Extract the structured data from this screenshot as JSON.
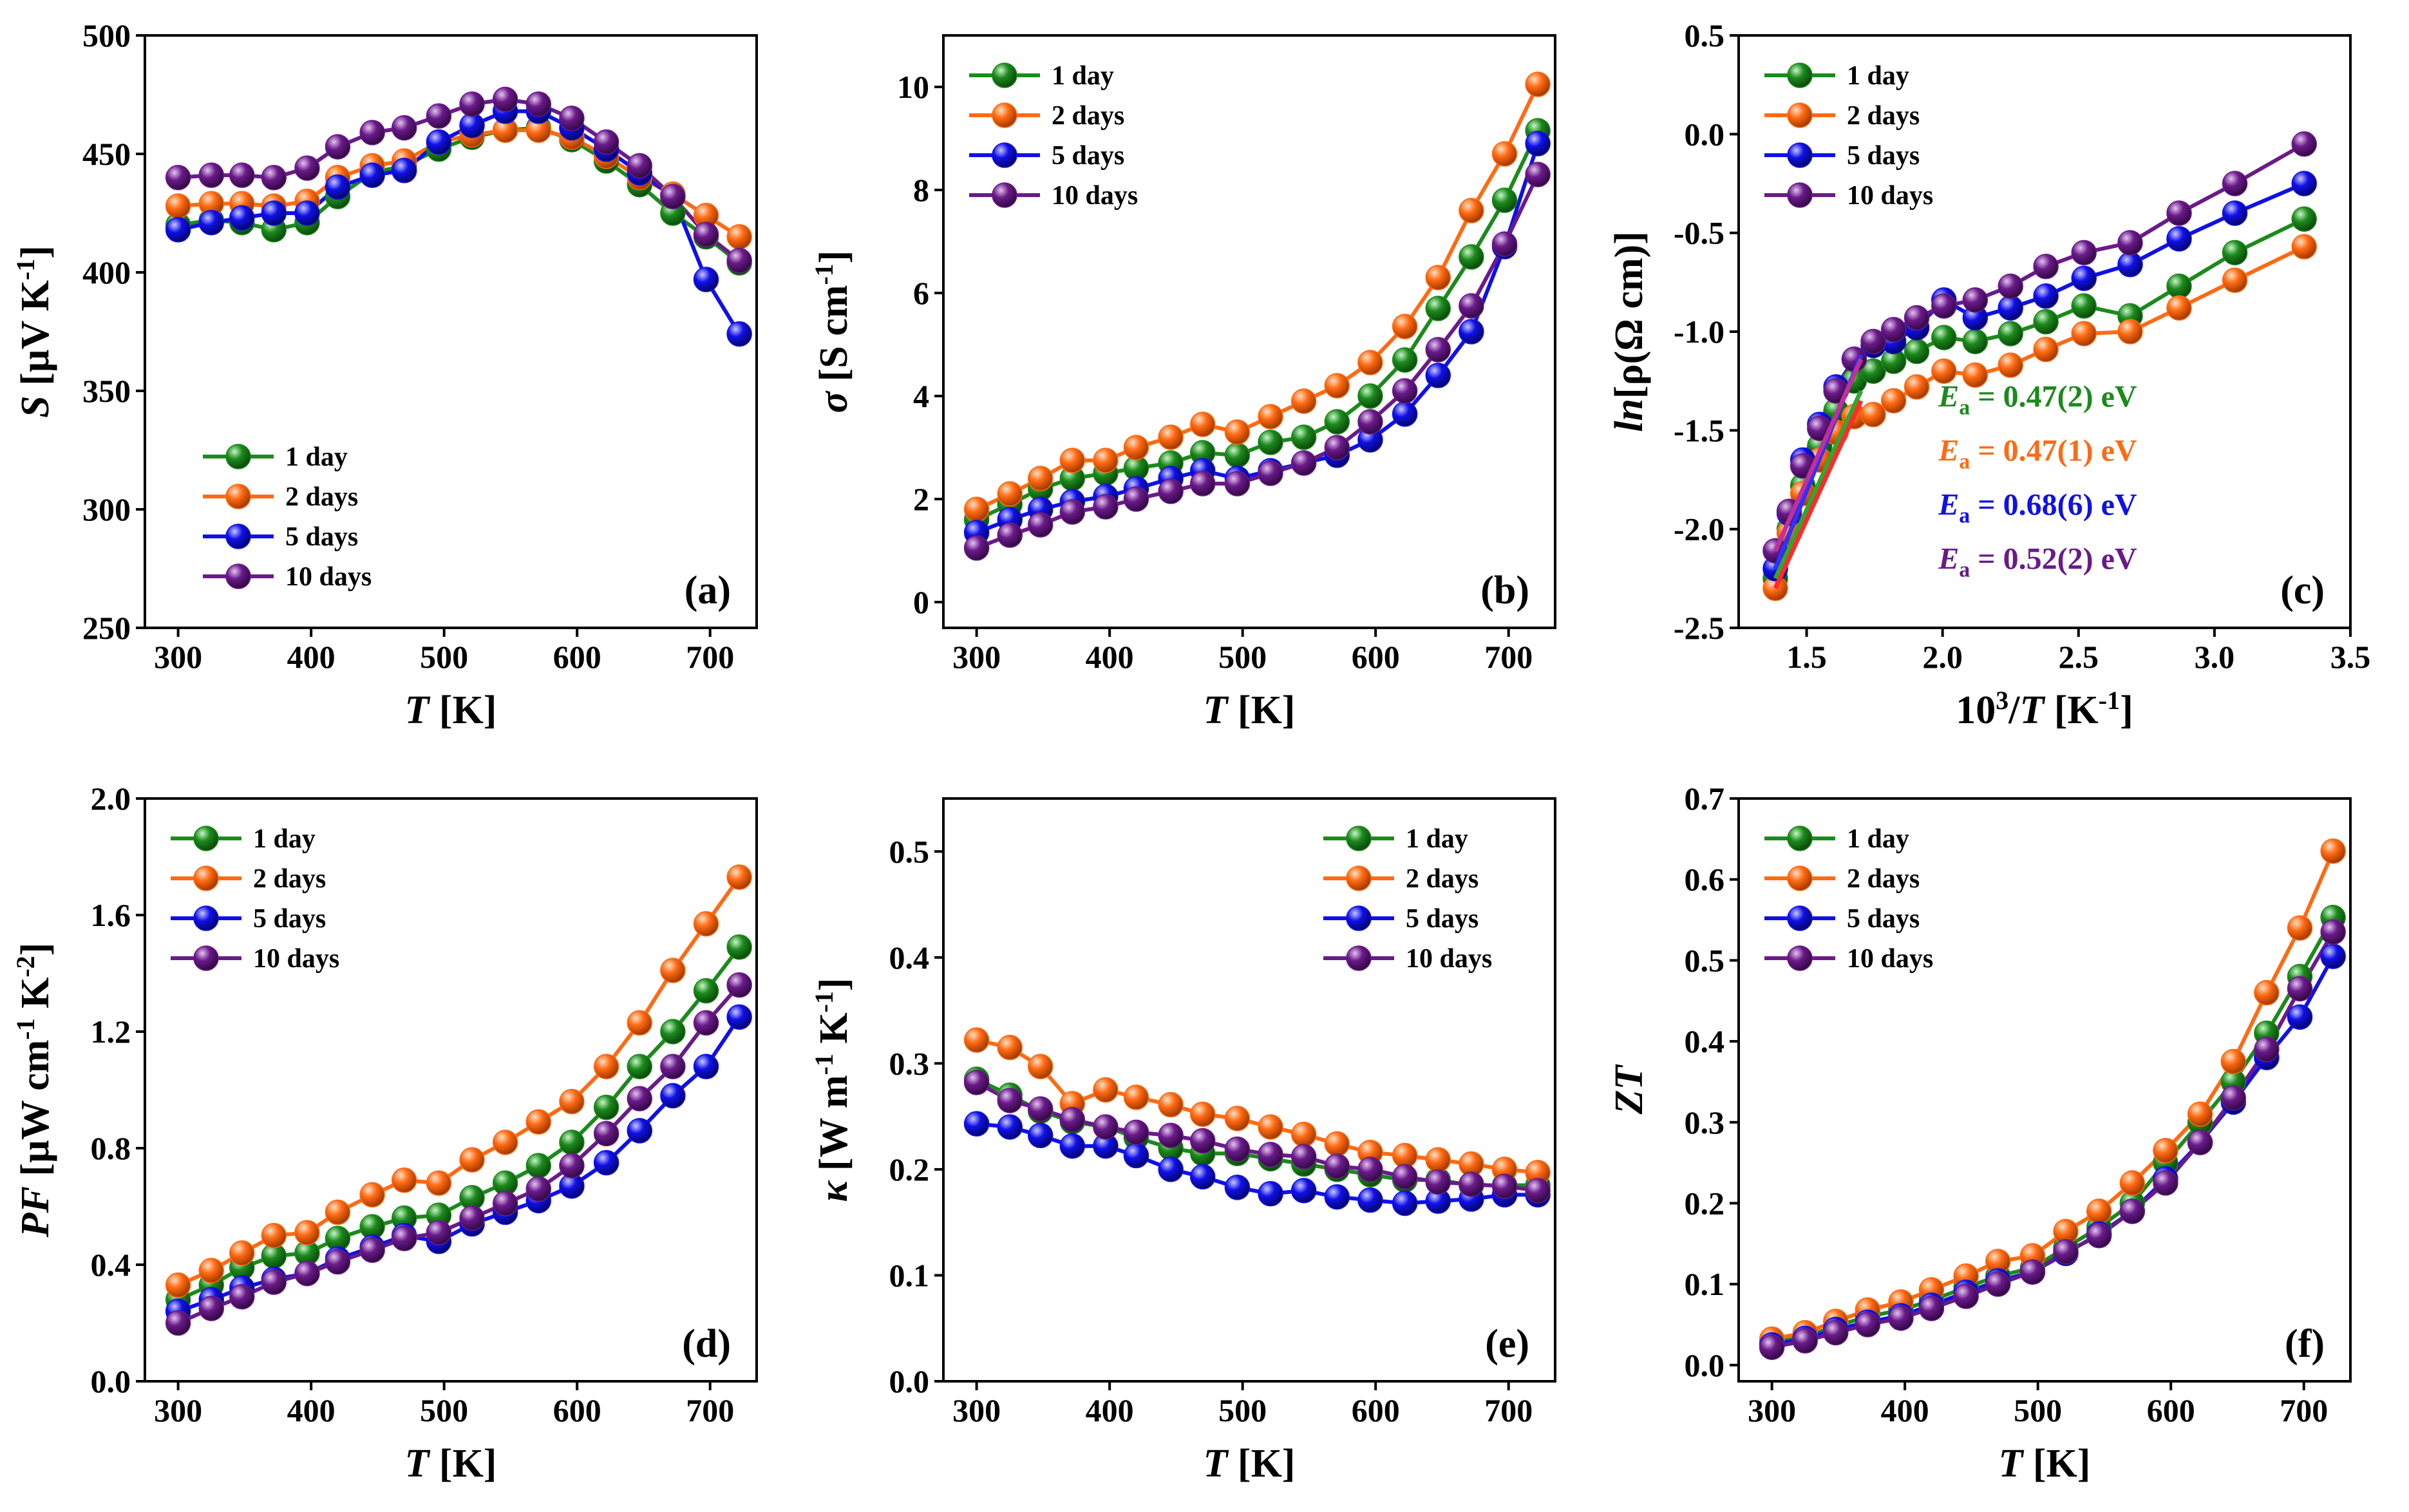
{
  "figure": {
    "legend_labels": [
      "1 day",
      "2 days",
      "5 days",
      "10 days"
    ],
    "series_colors": [
      "#1c8a1c",
      "#ff6a13",
      "#1010e8",
      "#6a1a8a"
    ]
  },
  "chart_data": [
    {
      "id": "a",
      "type": "line",
      "panel_label": "(a)",
      "xlabel": "T [K]",
      "ylabel": "S [µV K-1]",
      "xlim": [
        275,
        735
      ],
      "ylim": [
        250,
        500
      ],
      "xticks": [
        300,
        400,
        500,
        600,
        700
      ],
      "yticks": [
        250,
        300,
        350,
        400,
        450,
        500
      ],
      "legend_position": "bottom-left",
      "x": [
        300,
        325,
        348,
        372,
        397,
        420,
        446,
        470,
        496,
        521,
        546,
        571,
        596,
        622,
        647,
        672,
        697,
        722
      ],
      "series": [
        {
          "name": "1 day",
          "values": [
            420,
            422,
            421,
            418,
            421,
            432,
            442,
            445,
            452,
            457,
            460,
            461,
            456,
            447,
            437,
            425,
            415,
            404
          ]
        },
        {
          "name": "2 days",
          "values": [
            428,
            429,
            429,
            428,
            430,
            440,
            445,
            447,
            455,
            458,
            460,
            460,
            457,
            449,
            440,
            433,
            424,
            415
          ]
        },
        {
          "name": "5 days",
          "values": [
            418,
            421,
            423,
            425,
            425,
            436,
            441,
            443,
            455,
            462,
            468,
            468,
            461,
            452,
            442,
            432,
            397,
            374
          ]
        },
        {
          "name": "10 days",
          "values": [
            440,
            441,
            441,
            440,
            444,
            453,
            459,
            461,
            466,
            471,
            473,
            471,
            465,
            455,
            445,
            432,
            416,
            405
          ]
        }
      ]
    },
    {
      "id": "b",
      "type": "line",
      "panel_label": "(b)",
      "xlabel": "T [K]",
      "ylabel": "σ [S cm-1]",
      "xlim": [
        275,
        735
      ],
      "ylim": [
        -0.5,
        11
      ],
      "xticks": [
        300,
        400,
        500,
        600,
        700
      ],
      "yticks": [
        0,
        2,
        4,
        6,
        8,
        10
      ],
      "legend_position": "top-left",
      "x": [
        300,
        325,
        348,
        372,
        397,
        420,
        446,
        470,
        496,
        521,
        546,
        571,
        596,
        622,
        647,
        672,
        697,
        722
      ],
      "series": [
        {
          "name": "1 day",
          "values": [
            1.6,
            1.9,
            2.2,
            2.4,
            2.5,
            2.6,
            2.7,
            2.9,
            2.85,
            3.1,
            3.2,
            3.5,
            4.0,
            4.7,
            5.7,
            6.7,
            7.8,
            9.15
          ]
        },
        {
          "name": "2 days",
          "values": [
            1.8,
            2.1,
            2.4,
            2.75,
            2.75,
            3.0,
            3.2,
            3.45,
            3.3,
            3.6,
            3.9,
            4.2,
            4.65,
            5.35,
            6.3,
            7.6,
            8.7,
            10.05
          ]
        },
        {
          "name": "5 days",
          "values": [
            1.35,
            1.6,
            1.8,
            1.95,
            2.05,
            2.2,
            2.4,
            2.55,
            2.4,
            2.55,
            2.7,
            2.85,
            3.15,
            3.65,
            4.4,
            5.25,
            6.9,
            8.9
          ]
        },
        {
          "name": "10 days",
          "values": [
            1.05,
            1.3,
            1.5,
            1.75,
            1.85,
            2.0,
            2.15,
            2.3,
            2.3,
            2.5,
            2.7,
            3.0,
            3.5,
            4.1,
            4.9,
            5.75,
            6.95,
            8.3
          ]
        }
      ]
    },
    {
      "id": "c",
      "type": "line",
      "panel_label": "(c)",
      "xlabel": "10^3/T [K^-1]",
      "ylabel": "ln[ρ(Ω cm)]",
      "xlim": [
        1.25,
        3.5
      ],
      "ylim": [
        -2.5,
        0.5
      ],
      "xticks": [
        1.5,
        2.0,
        2.5,
        3.0,
        3.5
      ],
      "yticks": [
        -2.5,
        -2.0,
        -1.5,
        -1.0,
        -0.5,
        0.0,
        0.5
      ],
      "ytick_labels": [
        "-2.5",
        "-2.0",
        "-1.5",
        "-1.0",
        "-0.5",
        "0.0",
        "0.5"
      ],
      "xtick_labels": [
        "1.5",
        "2.0",
        "2.5",
        "3.0",
        "3.5"
      ],
      "legend_position": "top-left",
      "x": [
        1.385,
        1.436,
        1.486,
        1.548,
        1.608,
        1.675,
        1.745,
        1.82,
        1.905,
        2.005,
        2.12,
        2.25,
        2.38,
        2.52,
        2.69,
        2.87,
        3.075,
        3.33
      ],
      "series": [
        {
          "name": "1 day",
          "values": [
            -2.25,
            -2.0,
            -1.78,
            -1.58,
            -1.4,
            -1.25,
            -1.2,
            -1.15,
            -1.1,
            -1.03,
            -1.05,
            -1.01,
            -0.95,
            -0.87,
            -0.92,
            -0.77,
            -0.6,
            -0.43
          ]
        },
        {
          "name": "2 days",
          "values": [
            -2.3,
            -2.02,
            -1.82,
            -1.65,
            -1.51,
            -1.43,
            -1.42,
            -1.35,
            -1.28,
            -1.2,
            -1.22,
            -1.17,
            -1.09,
            -1.01,
            -1.0,
            -0.88,
            -0.74,
            -0.57
          ]
        },
        {
          "name": "5 days",
          "values": [
            -2.2,
            -1.92,
            -1.65,
            -1.47,
            -1.28,
            -1.14,
            -1.07,
            -1.05,
            -0.98,
            -0.84,
            -0.93,
            -0.88,
            -0.82,
            -0.73,
            -0.66,
            -0.53,
            -0.4,
            -0.25
          ]
        },
        {
          "name": "10 days",
          "values": [
            -2.11,
            -1.91,
            -1.68,
            -1.49,
            -1.3,
            -1.14,
            -1.05,
            -0.99,
            -0.93,
            -0.87,
            -0.84,
            -0.77,
            -0.67,
            -0.6,
            -0.55,
            -0.4,
            -0.25,
            -0.05
          ]
        }
      ],
      "fit_lines": [
        {
          "series": "1 day",
          "x": [
            1.385,
            1.7
          ],
          "y": [
            -2.25,
            -1.3
          ]
        },
        {
          "series": "2 days",
          "x": [
            1.385,
            1.7
          ],
          "y": [
            -2.3,
            -1.35
          ]
        },
        {
          "series": "5 days",
          "x": [
            1.385,
            1.7
          ],
          "y": [
            -2.2,
            -1.12
          ]
        },
        {
          "series": "10 days",
          "x": [
            1.385,
            1.7
          ],
          "y": [
            -2.11,
            -1.14
          ]
        }
      ],
      "annotations": [
        {
          "prefix": "E",
          "sub": "a",
          "text": " = 0.47(2) eV",
          "series": "1 day"
        },
        {
          "prefix": "E",
          "sub": "a",
          "text": " = 0.47(1) eV",
          "series": "2 days"
        },
        {
          "prefix": "E",
          "sub": "a",
          "text": " = 0.68(6) eV",
          "series": "5 days"
        },
        {
          "prefix": "E",
          "sub": "a",
          "text": " = 0.52(2) eV",
          "series": "10 days"
        }
      ]
    },
    {
      "id": "d",
      "type": "line",
      "panel_label": "(d)",
      "xlabel": "T [K]",
      "ylabel": "PF [µW cm-1 K-2]",
      "xlim": [
        275,
        735
      ],
      "ylim": [
        0,
        2.0
      ],
      "xticks": [
        300,
        400,
        500,
        600,
        700
      ],
      "yticks": [
        0.0,
        0.4,
        0.8,
        1.2,
        1.6,
        2.0
      ],
      "ytick_labels": [
        "0.0",
        "0.4",
        "0.8",
        "1.2",
        "1.6",
        "2.0"
      ],
      "legend_position": "top-left",
      "x": [
        300,
        325,
        348,
        372,
        397,
        420,
        446,
        470,
        496,
        521,
        546,
        571,
        596,
        622,
        647,
        672,
        697,
        722
      ],
      "series": [
        {
          "name": "1 day",
          "values": [
            0.28,
            0.33,
            0.39,
            0.43,
            0.44,
            0.49,
            0.53,
            0.56,
            0.57,
            0.63,
            0.68,
            0.74,
            0.82,
            0.94,
            1.08,
            1.2,
            1.34,
            1.49
          ]
        },
        {
          "name": "2 days",
          "values": [
            0.33,
            0.38,
            0.44,
            0.5,
            0.51,
            0.58,
            0.64,
            0.69,
            0.68,
            0.76,
            0.82,
            0.89,
            0.96,
            1.08,
            1.23,
            1.41,
            1.57,
            1.73
          ]
        },
        {
          "name": "5 days",
          "values": [
            0.24,
            0.28,
            0.32,
            0.35,
            0.37,
            0.42,
            0.46,
            0.5,
            0.48,
            0.54,
            0.58,
            0.62,
            0.67,
            0.75,
            0.86,
            0.98,
            1.08,
            1.25
          ]
        },
        {
          "name": "10 days",
          "values": [
            0.2,
            0.25,
            0.29,
            0.34,
            0.37,
            0.41,
            0.45,
            0.49,
            0.51,
            0.56,
            0.61,
            0.66,
            0.74,
            0.85,
            0.97,
            1.08,
            1.23,
            1.36
          ]
        }
      ]
    },
    {
      "id": "e",
      "type": "line",
      "panel_label": "(e)",
      "xlabel": "T [K]",
      "ylabel": "κ [W m-1 K-1]",
      "xlim": [
        275,
        735
      ],
      "ylim": [
        0,
        0.55
      ],
      "xticks": [
        300,
        400,
        500,
        600,
        700
      ],
      "yticks": [
        0.0,
        0.1,
        0.2,
        0.3,
        0.4,
        0.5
      ],
      "ytick_labels": [
        "0.0",
        "0.1",
        "0.2",
        "0.3",
        "0.4",
        "0.5"
      ],
      "legend_position": "top-right",
      "x": [
        300,
        325,
        348,
        372,
        397,
        420,
        446,
        470,
        496,
        521,
        546,
        571,
        596,
        622,
        647,
        672,
        697,
        722
      ],
      "series": [
        {
          "name": "1 day",
          "values": [
            0.285,
            0.27,
            0.255,
            0.245,
            0.24,
            0.23,
            0.22,
            0.215,
            0.215,
            0.21,
            0.205,
            0.2,
            0.195,
            0.19,
            0.19,
            0.185,
            0.185,
            0.185
          ]
        },
        {
          "name": "2 days",
          "values": [
            0.322,
            0.315,
            0.297,
            0.262,
            0.275,
            0.268,
            0.261,
            0.252,
            0.248,
            0.24,
            0.233,
            0.224,
            0.216,
            0.213,
            0.209,
            0.205,
            0.2,
            0.197
          ]
        },
        {
          "name": "5 days",
          "values": [
            0.243,
            0.24,
            0.232,
            0.222,
            0.222,
            0.213,
            0.2,
            0.193,
            0.183,
            0.177,
            0.18,
            0.174,
            0.171,
            0.168,
            0.17,
            0.172,
            0.176,
            0.176
          ]
        },
        {
          "name": "10 days",
          "values": [
            0.282,
            0.265,
            0.257,
            0.247,
            0.24,
            0.235,
            0.232,
            0.227,
            0.219,
            0.214,
            0.212,
            0.203,
            0.2,
            0.193,
            0.188,
            0.186,
            0.184,
            0.18
          ]
        }
      ]
    },
    {
      "id": "f",
      "type": "line",
      "panel_label": "(f)",
      "xlabel": "T [K]",
      "ylabel": "ZT",
      "xlim": [
        275,
        735
      ],
      "ylim": [
        -0.02,
        0.7
      ],
      "xticks": [
        300,
        400,
        500,
        600,
        700
      ],
      "yticks": [
        0.0,
        0.1,
        0.2,
        0.3,
        0.4,
        0.5,
        0.6,
        0.7
      ],
      "ytick_labels": [
        "0.0",
        "0.1",
        "0.2",
        "0.3",
        "0.4",
        "0.5",
        "0.6",
        "0.7"
      ],
      "legend_position": "top-left",
      "x": [
        300,
        325,
        348,
        372,
        397,
        420,
        446,
        470,
        496,
        521,
        546,
        571,
        596,
        622,
        647,
        672,
        697,
        722
      ],
      "series": [
        {
          "name": "1 day",
          "values": [
            0.028,
            0.035,
            0.048,
            0.06,
            0.068,
            0.08,
            0.096,
            0.11,
            0.12,
            0.145,
            0.17,
            0.2,
            0.25,
            0.3,
            0.35,
            0.41,
            0.48,
            0.553
          ]
        },
        {
          "name": "2 days",
          "values": [
            0.032,
            0.04,
            0.054,
            0.068,
            0.078,
            0.093,
            0.11,
            0.128,
            0.135,
            0.165,
            0.19,
            0.225,
            0.265,
            0.31,
            0.375,
            0.46,
            0.54,
            0.635
          ]
        },
        {
          "name": "5 days",
          "values": [
            0.025,
            0.033,
            0.044,
            0.053,
            0.061,
            0.074,
            0.09,
            0.104,
            0.115,
            0.138,
            0.162,
            0.19,
            0.23,
            0.275,
            0.325,
            0.38,
            0.43,
            0.505
          ]
        },
        {
          "name": "10 days",
          "values": [
            0.022,
            0.03,
            0.04,
            0.05,
            0.058,
            0.07,
            0.085,
            0.1,
            0.115,
            0.14,
            0.16,
            0.19,
            0.225,
            0.275,
            0.33,
            0.39,
            0.465,
            0.535
          ]
        }
      ]
    }
  ]
}
